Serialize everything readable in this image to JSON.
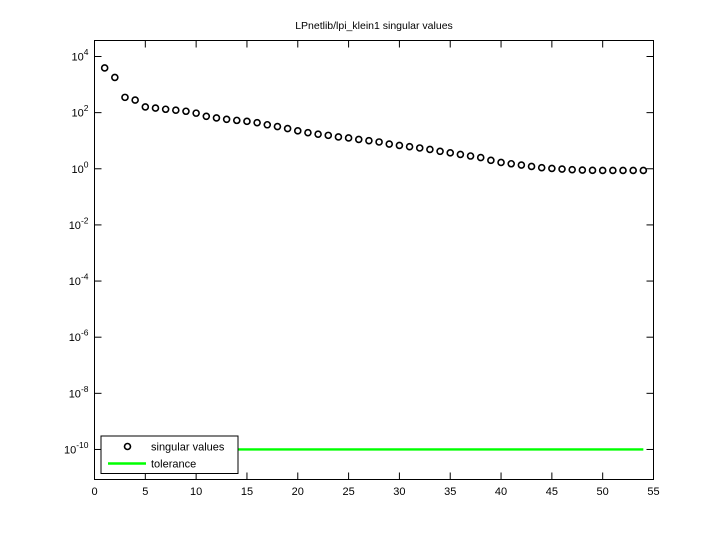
{
  "window": {
    "background": "#ffffff",
    "axis_color": "#000000"
  },
  "chart_data": {
    "type": "scatter",
    "title": "LPnetlib/lpi_klein1 singular values",
    "xlabel": "",
    "ylabel": "",
    "yscale": "log",
    "grid": false,
    "xlim": [
      0,
      55
    ],
    "ylim_log10": [
      -11.07,
      4.57
    ],
    "x_ticks": [
      0,
      5,
      10,
      15,
      20,
      25,
      30,
      35,
      40,
      45,
      50,
      55
    ],
    "y_tick_exponents": [
      4,
      2,
      0,
      -2,
      -4,
      -6,
      -8,
      -10
    ],
    "y_tick_base": "10",
    "legend_position": "lower-left",
    "series": [
      {
        "name": "singular values",
        "type": "scatter",
        "marker": "circle",
        "color": "#000000",
        "x": [
          1,
          2,
          3,
          4,
          5,
          6,
          7,
          8,
          9,
          10,
          11,
          12,
          13,
          14,
          15,
          16,
          17,
          18,
          19,
          20,
          21,
          22,
          23,
          24,
          25,
          26,
          27,
          28,
          29,
          30,
          31,
          32,
          33,
          34,
          35,
          36,
          37,
          38,
          39,
          40,
          41,
          42,
          43,
          44,
          45,
          46,
          47,
          48,
          49,
          50,
          51,
          52,
          53,
          54
        ],
        "y": [
          3900,
          1800,
          350,
          280,
          160,
          145,
          132,
          122,
          112,
          96,
          74,
          65,
          58,
          53,
          49,
          44,
          37,
          32,
          27,
          22.5,
          19.3,
          17.1,
          15.5,
          13.6,
          12.5,
          11.1,
          10.0,
          9.0,
          7.6,
          6.8,
          6.1,
          5.5,
          4.9,
          4.2,
          3.7,
          3.25,
          2.85,
          2.5,
          2.0,
          1.68,
          1.51,
          1.36,
          1.21,
          1.09,
          1.03,
          0.98,
          0.93,
          0.9,
          0.88,
          0.87,
          0.87,
          0.87,
          0.87,
          0.87
        ]
      },
      {
        "name": "tolerance",
        "type": "line",
        "color": "#00ff00",
        "x": [
          1,
          54
        ],
        "y": [
          1e-10,
          1e-10
        ]
      }
    ]
  }
}
